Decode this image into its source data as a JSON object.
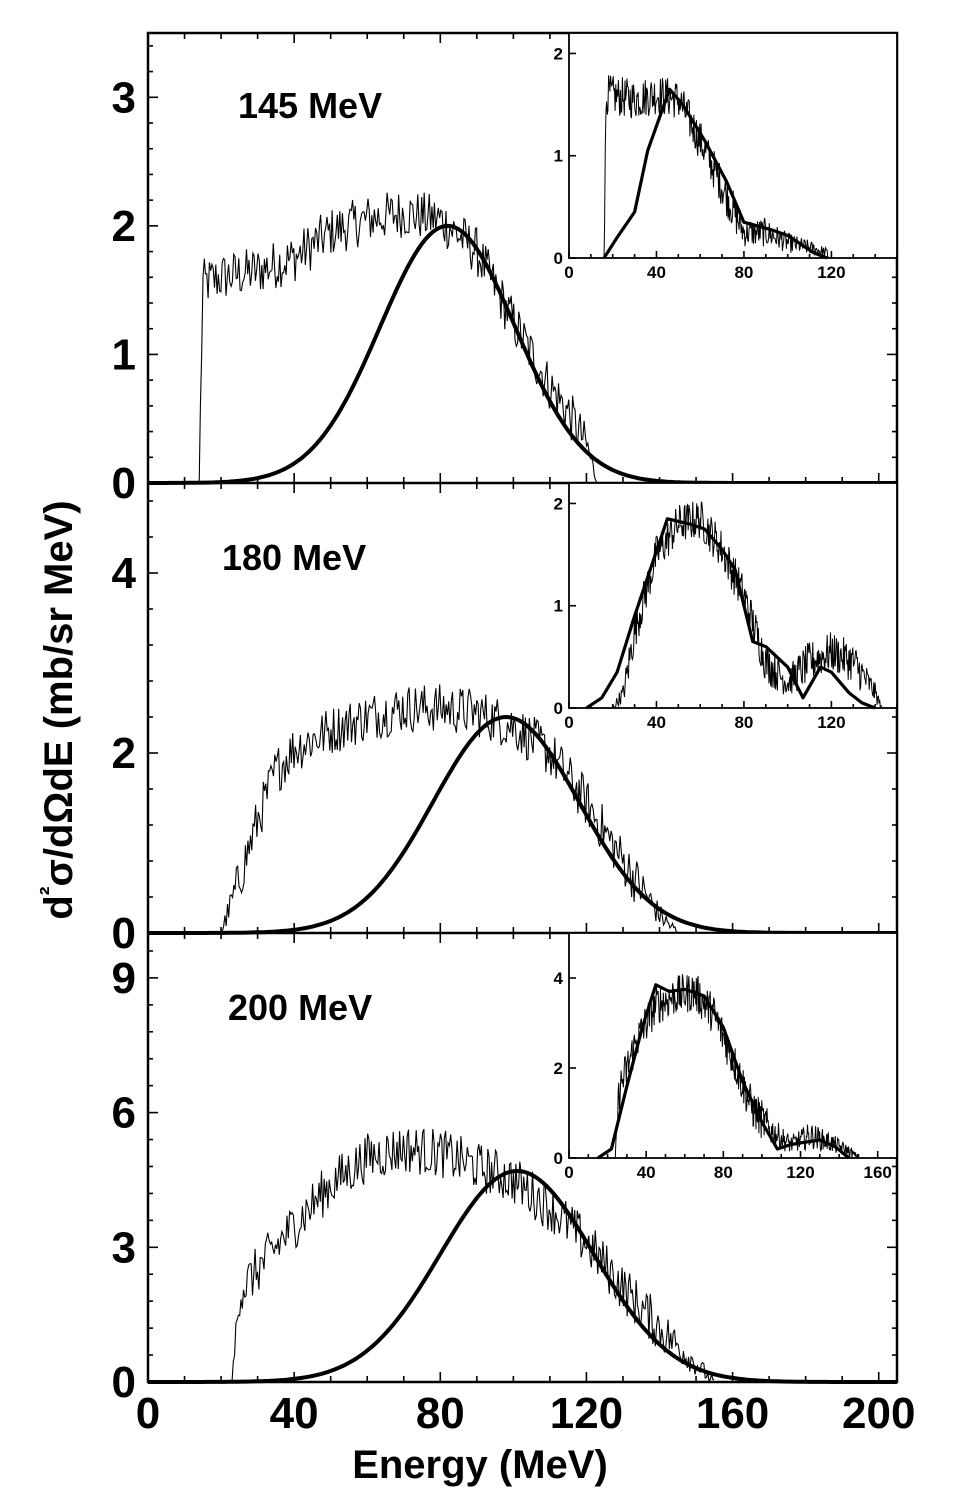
{
  "chart_data": {
    "type": "line",
    "xlabel": "Energy (MeV)",
    "ylabel": "d²σ/dΩdE (mb/sr MeV)",
    "x_ticks": [
      0,
      40,
      80,
      120,
      160,
      200
    ],
    "xlim": [
      0,
      205
    ],
    "grid": false,
    "panels": [
      {
        "label": "145 MeV",
        "ylim": [
          0,
          3.5
        ],
        "y_ticks": [
          0,
          1,
          2,
          3
        ],
        "series": [
          {
            "style": "thin-noisy",
            "x": [
              14,
              15,
              20,
              30,
              40,
              50,
              60,
              70,
              80,
              90,
              100,
              110,
              115,
              120,
              122,
              123
            ],
            "y": [
              0,
              1.55,
              1.6,
              1.65,
              1.75,
              1.95,
              2.05,
              2.1,
              2.05,
              1.8,
              1.25,
              0.75,
              0.55,
              0.3,
              0.1,
              0
            ]
          },
          {
            "style": "thick-smooth",
            "gaussian": {
              "peak": 2.0,
              "center": 82,
              "sigma": 18.5
            }
          }
        ],
        "inset": {
          "xlim": [
            0,
            150
          ],
          "ylim": [
            0,
            2.2
          ],
          "x_ticks": [
            0,
            40,
            80,
            120
          ],
          "y_ticks": [
            0,
            1,
            2
          ],
          "series": [
            {
              "style": "thin-noisy",
              "x": [
                16,
                17,
                30,
                40,
                50,
                60,
                70,
                80,
                90,
                100,
                110,
                118,
                119
              ],
              "y": [
                0,
                1.6,
                1.55,
                1.6,
                1.55,
                1.15,
                0.7,
                0.25,
                0.25,
                0.15,
                0.1,
                0.05,
                0
              ]
            },
            {
              "style": "thick",
              "x": [
                16,
                22,
                30,
                36,
                46,
                52,
                62,
                72,
                80,
                92,
                100,
                112,
                118
              ],
              "y": [
                0,
                0.2,
                0.45,
                1.05,
                1.65,
                1.5,
                1.15,
                0.75,
                0.35,
                0.28,
                0.22,
                0.05,
                0
              ]
            }
          ]
        }
      },
      {
        "label": "180 MeV",
        "ylim": [
          0,
          5.0
        ],
        "y_ticks": [
          0,
          2,
          4
        ],
        "series": [
          {
            "style": "thin-noisy",
            "x": [
              20,
              25,
              30,
              35,
              40,
              50,
              60,
              70,
              80,
              90,
              100,
              110,
              120,
              130,
              140,
              145
            ],
            "y": [
              0,
              0.6,
              1.25,
              1.8,
              2.05,
              2.25,
              2.4,
              2.5,
              2.5,
              2.45,
              2.3,
              2.0,
              1.45,
              0.8,
              0.2,
              0
            ]
          },
          {
            "style": "thick-smooth",
            "gaussian": {
              "peak": 2.4,
              "center": 98,
              "sigma": 20
            }
          }
        ],
        "inset": {
          "xlim": [
            0,
            150
          ],
          "ylim": [
            0,
            2.2
          ],
          "x_ticks": [
            0,
            40,
            80,
            120
          ],
          "y_ticks": [
            0,
            1,
            2
          ],
          "series": [
            {
              "style": "thin-noisy",
              "x": [
                20,
                25,
                30,
                40,
                50,
                60,
                70,
                80,
                90,
                100,
                110,
                120,
                130,
                140,
                143
              ],
              "y": [
                0,
                0.15,
                0.75,
                1.5,
                1.8,
                1.85,
                1.55,
                1.1,
                0.45,
                0.25,
                0.45,
                0.55,
                0.45,
                0.15,
                0
              ]
            },
            {
              "style": "thick",
              "x": [
                8,
                15,
                22,
                30,
                45,
                55,
                62,
                70,
                76,
                84,
                90,
                100,
                107,
                115,
                120,
                128,
                134,
                140
              ],
              "y": [
                0,
                0.1,
                0.35,
                0.9,
                1.85,
                1.8,
                1.75,
                1.55,
                1.35,
                0.65,
                0.6,
                0.4,
                0.1,
                0.4,
                0.35,
                0.15,
                0.05,
                0
              ]
            }
          ]
        }
      },
      {
        "label": "200 MeV",
        "ylim": [
          0,
          10.0
        ],
        "y_ticks": [
          0,
          3,
          6,
          9
        ],
        "series": [
          {
            "style": "thin-noisy",
            "x": [
              23,
              25,
              30,
              40,
              50,
              60,
              70,
              80,
              90,
              100,
              110,
              120,
              130,
              140,
              150,
              155
            ],
            "y": [
              0,
              2.0,
              2.5,
              3.5,
              4.4,
              5.0,
              5.2,
              5.1,
              4.8,
              4.5,
              3.9,
              3.1,
              2.1,
              1.2,
              0.4,
              0
            ]
          },
          {
            "style": "thick-smooth",
            "gaussian": {
              "peak": 4.7,
              "center": 101,
              "sigma": 21
            }
          }
        ],
        "inset": {
          "xlim": [
            0,
            170
          ],
          "ylim": [
            0,
            5.0
          ],
          "x_ticks": [
            0,
            40,
            80,
            120,
            160
          ],
          "y_ticks": [
            0,
            2,
            4
          ],
          "series": [
            {
              "style": "thin-noisy",
              "x": [
                24,
                26,
                35,
                45,
                55,
                65,
                75,
                85,
                95,
                105,
                115,
                125,
                135,
                145,
                150
              ],
              "y": [
                0,
                1.5,
                2.6,
                3.4,
                3.6,
                3.7,
                3.2,
                2.2,
                1.1,
                0.6,
                0.3,
                0.5,
                0.35,
                0.15,
                0
              ]
            },
            {
              "style": "thick",
              "x": [
                15,
                22,
                30,
                38,
                45,
                52,
                60,
                70,
                80,
                90,
                100,
                108,
                115,
                122,
                130,
                138,
                145
              ],
              "y": [
                0,
                0.2,
                1.6,
                2.9,
                3.85,
                3.7,
                3.75,
                3.6,
                2.9,
                1.7,
                0.8,
                0.2,
                0.3,
                0.35,
                0.4,
                0.25,
                0
              ]
            }
          ]
        }
      }
    ]
  }
}
